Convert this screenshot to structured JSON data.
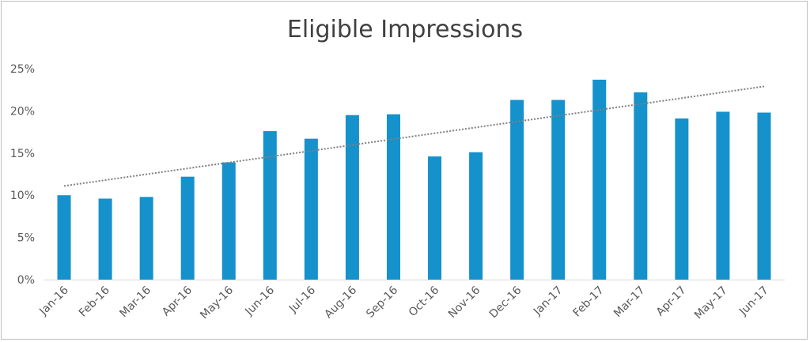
{
  "chart_data": {
    "type": "bar",
    "title": "Eligible Impressions",
    "xlabel": "",
    "ylabel": "",
    "categories": [
      "Jan-16",
      "Feb-16",
      "Mar-16",
      "Apr-16",
      "May-16",
      "Jun-16",
      "Jul-16",
      "Aug-16",
      "Sep-16",
      "Oct-16",
      "Nov-16",
      "Dec-16",
      "Jan-17",
      "Feb-17",
      "Mar-17",
      "Apr-17",
      "May-17",
      "Jun-17"
    ],
    "values": [
      10.0,
      9.6,
      9.8,
      12.2,
      13.9,
      17.6,
      16.7,
      19.5,
      19.6,
      14.6,
      15.1,
      21.3,
      21.3,
      23.7,
      22.2,
      19.1,
      19.9,
      19.8
    ],
    "ylim": [
      0,
      25
    ],
    "yticks": [
      "0%",
      "5%",
      "10%",
      "15%",
      "20%",
      "25%"
    ],
    "ytick_values": [
      0,
      5,
      10,
      15,
      20,
      25
    ],
    "trendline": {
      "style": "dotted",
      "start": 11.1,
      "end": 22.9
    },
    "grid": false,
    "legend": "none",
    "colors": {
      "bar": "#1591cb",
      "trend": "#808080",
      "axis": "#d9d9d9"
    }
  }
}
